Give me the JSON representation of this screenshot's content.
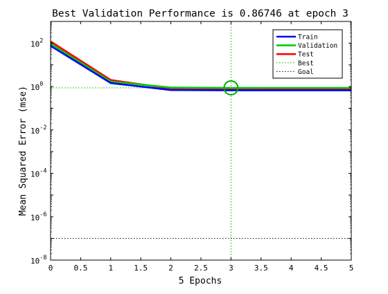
{
  "chart_data": {
    "type": "line",
    "title": "Best Validation Performance is 0.86746 at epoch 3",
    "xlabel": "5 Epochs",
    "ylabel": "Mean Squared Error  (mse)",
    "xlim": [
      0,
      5
    ],
    "ylim": [
      1e-08,
      1000
    ],
    "yscale": "log",
    "xticks": [
      "0",
      "0.5",
      "1",
      "1.5",
      "2",
      "2.5",
      "3",
      "3.5",
      "4",
      "4.5",
      "5"
    ],
    "yticks": [
      {
        "base": "10",
        "exp": "-8"
      },
      {
        "base": "10",
        "exp": "-6"
      },
      {
        "base": "10",
        "exp": "-4"
      },
      {
        "base": "10",
        "exp": "-2"
      },
      {
        "base": "10",
        "exp": "0"
      },
      {
        "base": "10",
        "exp": "2"
      }
    ],
    "x": [
      0,
      1,
      2,
      3,
      4,
      5
    ],
    "series": [
      {
        "name": "Train",
        "values": [
          75,
          1.45,
          0.69,
          0.67,
          0.67,
          0.67
        ],
        "color": "#0000ff"
      },
      {
        "name": "Validation",
        "values": [
          95,
          1.7,
          0.9,
          0.86746,
          0.87,
          0.87
        ],
        "color": "#00cc00"
      },
      {
        "name": "Test",
        "values": [
          120,
          2.0,
          0.8,
          0.78,
          0.78,
          0.78
        ],
        "color": "#ff0000"
      }
    ],
    "best": {
      "label": "Best",
      "epoch": 3,
      "value": 0.86746,
      "color": "#00aa00"
    },
    "goal": {
      "label": "Goal",
      "value": 1e-07,
      "color": "#000000"
    },
    "legend_position": "top-right",
    "grid": false
  }
}
